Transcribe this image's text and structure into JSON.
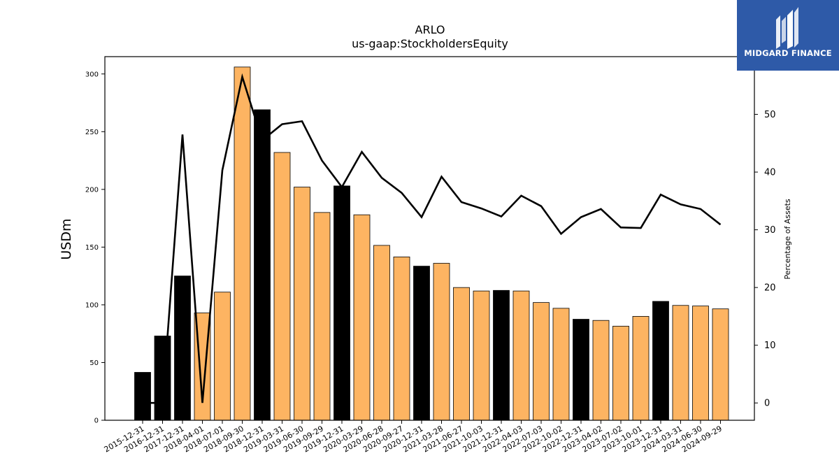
{
  "chart_data": {
    "type": "bar+line",
    "title": "ARLO",
    "subtitle": "us-gaap:StockholdersEquity",
    "ylabel_left": "USDm",
    "ylabel_right": "Percentage of Assets",
    "ylim_left": [
      0,
      315
    ],
    "ylim_right": [
      -3,
      60
    ],
    "yticks_left": [
      0,
      50,
      100,
      150,
      200,
      250,
      300
    ],
    "yticks_right": [
      0,
      10,
      20,
      30,
      40,
      50
    ],
    "categories": [
      "2015-12-31",
      "2016-12-31",
      "2017-12-31",
      "2018-04-01",
      "2018-07-01",
      "2018-09-30",
      "2018-12-31",
      "2019-03-31",
      "2019-06-30",
      "2019-09-29",
      "2019-12-31",
      "2020-03-29",
      "2020-06-28",
      "2020-09-27",
      "2020-12-31",
      "2021-03-28",
      "2021-06-27",
      "2021-10-03",
      "2021-12-31",
      "2022-04-03",
      "2022-07-03",
      "2022-10-02",
      "2022-12-31",
      "2023-04-02",
      "2023-07-02",
      "2023-10-01",
      "2023-12-31",
      "2024-03-31",
      "2024-06-30",
      "2024-09-29"
    ],
    "series": [
      {
        "kind": "bar",
        "values": [
          41.5,
          73,
          125,
          93,
          111,
          306,
          269,
          232,
          202,
          180,
          203,
          178,
          151.5,
          141.5,
          133.5,
          136,
          115,
          112,
          112.5,
          112,
          102,
          97,
          87.5,
          86.5,
          81.5,
          90,
          103,
          99.5,
          99,
          96.5
        ],
        "annual_color": "#000000",
        "quarterly_color": "#fdb462",
        "annual_flags": [
          true,
          true,
          true,
          false,
          false,
          false,
          true,
          false,
          false,
          false,
          true,
          false,
          false,
          false,
          true,
          false,
          false,
          false,
          true,
          false,
          false,
          false,
          true,
          false,
          false,
          false,
          true,
          false,
          false,
          false
        ]
      },
      {
        "kind": "line",
        "axis": "right",
        "color": "#000000",
        "values": [
          0,
          0,
          46.5,
          0,
          40.3,
          56.5,
          45.5,
          48.3,
          48.8,
          42,
          37.4,
          43.5,
          39,
          36.4,
          32.2,
          39.2,
          34.8,
          33.7,
          32.3,
          35.9,
          34.1,
          29.3,
          32.2,
          33.6,
          30.4,
          30.3,
          36.1,
          34.4,
          33.6,
          30.9
        ]
      }
    ]
  },
  "logo": {
    "text": "MIDGARD FINANCE",
    "color": "#2e5aa8"
  }
}
